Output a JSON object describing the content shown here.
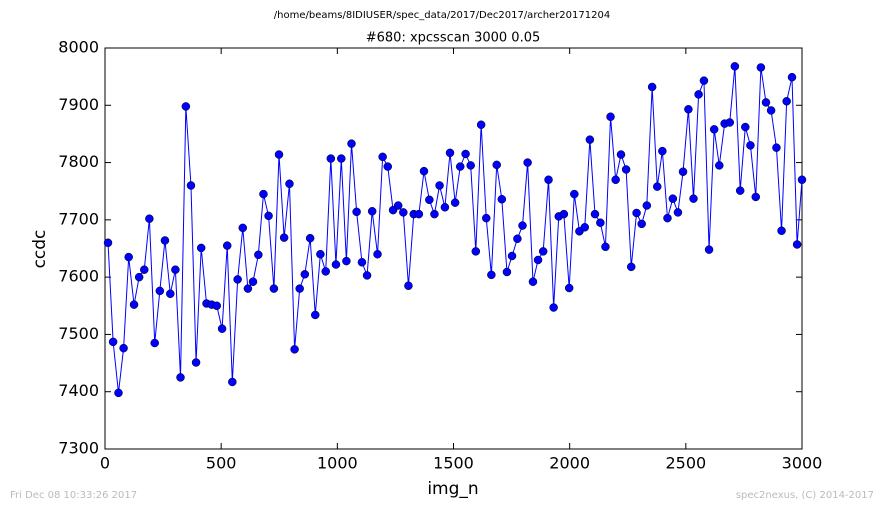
{
  "chart_data": {
    "type": "line",
    "suptitle": "/home/beams/8IDIUSER/spec_data/2017/Dec2017/archer20171204",
    "title": "#680: xpcsscan 3000 0.05",
    "x_label": "img_n",
    "y_label": "ccdc",
    "footer_left": "Fri Dec 08 10:33:26 2017",
    "footer_right": "spec2nexus, (C) 2014-2017",
    "xlim": [
      0,
      3000
    ],
    "ylim": [
      7300,
      8000
    ],
    "xticks": [
      0,
      500,
      1000,
      1500,
      2000,
      2500,
      3000
    ],
    "yticks": [
      7300,
      7400,
      7500,
      7600,
      7700,
      7800,
      7900,
      8000
    ],
    "grid": false,
    "series": [
      {
        "name": "ccdc",
        "color": "#0000ff",
        "x": [
          13,
          35,
          58,
          80,
          102,
          125,
          147,
          169,
          191,
          214,
          236,
          258,
          281,
          303,
          325,
          348,
          370,
          392,
          414,
          437,
          459,
          481,
          504,
          526,
          548,
          571,
          593,
          615,
          637,
          660,
          682,
          704,
          727,
          749,
          771,
          794,
          816,
          838,
          860,
          883,
          905,
          927,
          950,
          972,
          994,
          1017,
          1039,
          1061,
          1083,
          1106,
          1128,
          1150,
          1173,
          1195,
          1217,
          1240,
          1262,
          1284,
          1306,
          1329,
          1351,
          1373,
          1396,
          1418,
          1440,
          1463,
          1485,
          1507,
          1529,
          1552,
          1574,
          1596,
          1619,
          1641,
          1663,
          1686,
          1708,
          1730,
          1752,
          1775,
          1797,
          1819,
          1842,
          1864,
          1886,
          1909,
          1931,
          1953,
          1975,
          1998,
          2020,
          2042,
          2065,
          2087,
          2109,
          2132,
          2154,
          2176,
          2198,
          2221,
          2243,
          2265,
          2288,
          2310,
          2332,
          2355,
          2377,
          2399,
          2421,
          2444,
          2466,
          2488,
          2511,
          2533,
          2555,
          2578,
          2600,
          2622,
          2644,
          2667,
          2689,
          2711,
          2734,
          2756,
          2778,
          2801,
          2823,
          2845,
          2867,
          2890,
          2912,
          2934,
          2957,
          2979,
          3000
        ],
        "values": [
          7660,
          7487,
          7398,
          7476,
          7635,
          7552,
          7600,
          7613,
          7702,
          7485,
          7576,
          7664,
          7571,
          7613,
          7425,
          7898,
          7760,
          7451,
          7651,
          7554,
          7552,
          7550,
          7510,
          7655,
          7417,
          7596,
          7686,
          7580,
          7592,
          7639,
          7745,
          7707,
          7580,
          7814,
          7669,
          7763,
          7474,
          7580,
          7605,
          7668,
          7534,
          7640,
          7610,
          7807,
          7622,
          7807,
          7628,
          7833,
          7714,
          7626,
          7603,
          7715,
          7640,
          7810,
          7793,
          7717,
          7725,
          7713,
          7585,
          7710,
          7710,
          7785,
          7735,
          7710,
          7760,
          7722,
          7817,
          7730,
          7793,
          7815,
          7795,
          7645,
          7866,
          7703,
          7604,
          7796,
          7736,
          7609,
          7637,
          7667,
          7690,
          7800,
          7592,
          7630,
          7645,
          7770,
          7547,
          7706,
          7710,
          7581,
          7745,
          7680,
          7687,
          7840,
          7710,
          7695,
          7653,
          7880,
          7770,
          7814,
          7788,
          7618,
          7712,
          7693,
          7725,
          7932,
          7758,
          7820,
          7703,
          7737,
          7713,
          7784,
          7893,
          7737,
          7919,
          7943,
          7648,
          7858,
          7795,
          7868,
          7870,
          7968,
          7751,
          7862,
          7830,
          7740,
          7966,
          7905,
          7891,
          7826,
          7681,
          7907,
          7949,
          7657,
          7770
        ]
      }
    ]
  }
}
